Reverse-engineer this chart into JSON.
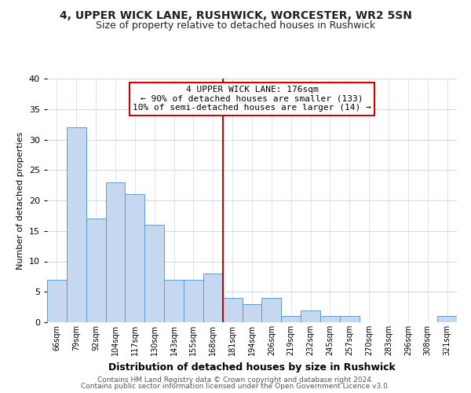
{
  "title": "4, UPPER WICK LANE, RUSHWICK, WORCESTER, WR2 5SN",
  "subtitle": "Size of property relative to detached houses in Rushwick",
  "xlabel": "Distribution of detached houses by size in Rushwick",
  "ylabel": "Number of detached properties",
  "bin_labels": [
    "66sqm",
    "79sqm",
    "92sqm",
    "104sqm",
    "117sqm",
    "130sqm",
    "143sqm",
    "155sqm",
    "168sqm",
    "181sqm",
    "194sqm",
    "206sqm",
    "219sqm",
    "232sqm",
    "245sqm",
    "257sqm",
    "270sqm",
    "283sqm",
    "296sqm",
    "308sqm",
    "321sqm"
  ],
  "bar_heights": [
    7,
    32,
    17,
    23,
    21,
    16,
    7,
    7,
    8,
    4,
    3,
    4,
    1,
    2,
    1,
    1,
    0,
    0,
    0,
    0,
    1
  ],
  "bar_color": "#c5d8f0",
  "bar_edge_color": "#5b9bd5",
  "vline_color": "#cc0000",
  "ylim": [
    0,
    40
  ],
  "yticks": [
    0,
    5,
    10,
    15,
    20,
    25,
    30,
    35,
    40
  ],
  "annotation_title": "4 UPPER WICK LANE: 176sqm",
  "annotation_line1": "← 90% of detached houses are smaller (133)",
  "annotation_line2": "10% of semi-detached houses are larger (14) →",
  "annotation_box_color": "#ffffff",
  "annotation_box_edge": "#cc0000",
  "footer1": "Contains HM Land Registry data © Crown copyright and database right 2024.",
  "footer2": "Contains public sector information licensed under the Open Government Licence v3.0.",
  "bg_color": "#ffffff",
  "grid_color": "#d0d8e8",
  "title_fontsize": 10,
  "subtitle_fontsize": 9,
  "ylabel_fontsize": 8,
  "xlabel_fontsize": 9,
  "ytick_fontsize": 8,
  "xtick_fontsize": 7,
  "annotation_fontsize": 8,
  "footer_fontsize": 6.5
}
